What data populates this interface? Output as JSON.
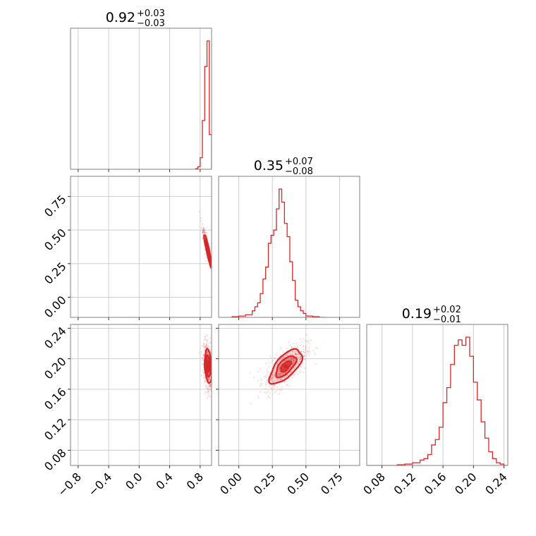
{
  "chart_data": {
    "type": "corner",
    "color": "#d62728",
    "grid": true,
    "parameters": [
      {
        "title": {
          "median": "0.92",
          "upper": "+0.03",
          "lower": "−0.03"
        },
        "range": [
          -0.9,
          0.95
        ],
        "ticks": [
          -0.8,
          -0.4,
          0.0,
          0.4,
          0.8
        ],
        "tick_labels": [
          "−0.8",
          "−0.4",
          "0.0",
          "0.4",
          "0.8"
        ],
        "hist": {
          "edges": [
            0.74,
            0.77,
            0.8,
            0.83,
            0.86,
            0.89,
            0.92,
            0.95
          ],
          "counts": [
            0.005,
            0.02,
            0.09,
            0.38,
            0.8,
            1.0,
            0.27
          ]
        }
      },
      {
        "title": {
          "median": "0.35",
          "upper": "+0.07",
          "lower": "−0.08"
        },
        "range": [
          -0.15,
          0.9
        ],
        "ticks": [
          0.0,
          0.25,
          0.5,
          0.75
        ],
        "tick_labels": [
          "0.00",
          "0.25",
          "0.50",
          "0.75"
        ],
        "hist": {
          "edges": [
            -0.05,
            0.0,
            0.05,
            0.1,
            0.12,
            0.14,
            0.16,
            0.18,
            0.2,
            0.22,
            0.24,
            0.26,
            0.28,
            0.3,
            0.32,
            0.34,
            0.36,
            0.38,
            0.4,
            0.42,
            0.44,
            0.46,
            0.48,
            0.5,
            0.55,
            0.6,
            0.65
          ],
          "counts": [
            0.005,
            0.01,
            0.02,
            0.05,
            0.08,
            0.11,
            0.18,
            0.29,
            0.38,
            0.56,
            0.62,
            0.66,
            0.82,
            0.97,
            0.87,
            0.71,
            0.61,
            0.42,
            0.28,
            0.13,
            0.08,
            0.05,
            0.03,
            0.01,
            0.005,
            0.0
          ]
        }
      },
      {
        "title": {
          "median": "0.19",
          "upper": "+0.02",
          "lower": "−0.01"
        },
        "range": [
          0.06,
          0.245
        ],
        "ticks": [
          0.08,
          0.12,
          0.16,
          0.2,
          0.24
        ],
        "tick_labels": [
          "0.08",
          "0.12",
          "0.16",
          "0.20",
          "0.24"
        ],
        "hist": {
          "edges": [
            0.06,
            0.1,
            0.11,
            0.12,
            0.13,
            0.135,
            0.14,
            0.145,
            0.15,
            0.155,
            0.16,
            0.165,
            0.17,
            0.175,
            0.18,
            0.185,
            0.19,
            0.195,
            0.2,
            0.205,
            0.21,
            0.215,
            0.22,
            0.225,
            0.23,
            0.235,
            0.24,
            0.245
          ],
          "counts": [
            0.0,
            0.005,
            0.01,
            0.02,
            0.04,
            0.05,
            0.08,
            0.15,
            0.19,
            0.28,
            0.46,
            0.57,
            0.74,
            0.88,
            0.92,
            0.88,
            0.94,
            0.8,
            0.61,
            0.48,
            0.32,
            0.2,
            0.1,
            0.05,
            0.02,
            0.01,
            0.0
          ]
        }
      }
    ],
    "pairs": [
      {
        "row": 1,
        "col": 0,
        "center": [
          0.9,
          0.35
        ],
        "sigma": [
          0.03,
          0.075
        ],
        "rho": -0.92,
        "levels": [
          0.5,
          1.0,
          1.6
        ]
      },
      {
        "row": 2,
        "col": 0,
        "center": [
          0.905,
          0.19
        ],
        "sigma": [
          0.028,
          0.014
        ],
        "rho": -0.3,
        "levels": [
          0.5,
          1.0,
          1.6
        ]
      },
      {
        "row": 2,
        "col": 1,
        "center": [
          0.35,
          0.19
        ],
        "sigma": [
          0.075,
          0.014
        ],
        "rho": 0.65,
        "levels": [
          0.5,
          1.0,
          1.6
        ]
      }
    ]
  }
}
